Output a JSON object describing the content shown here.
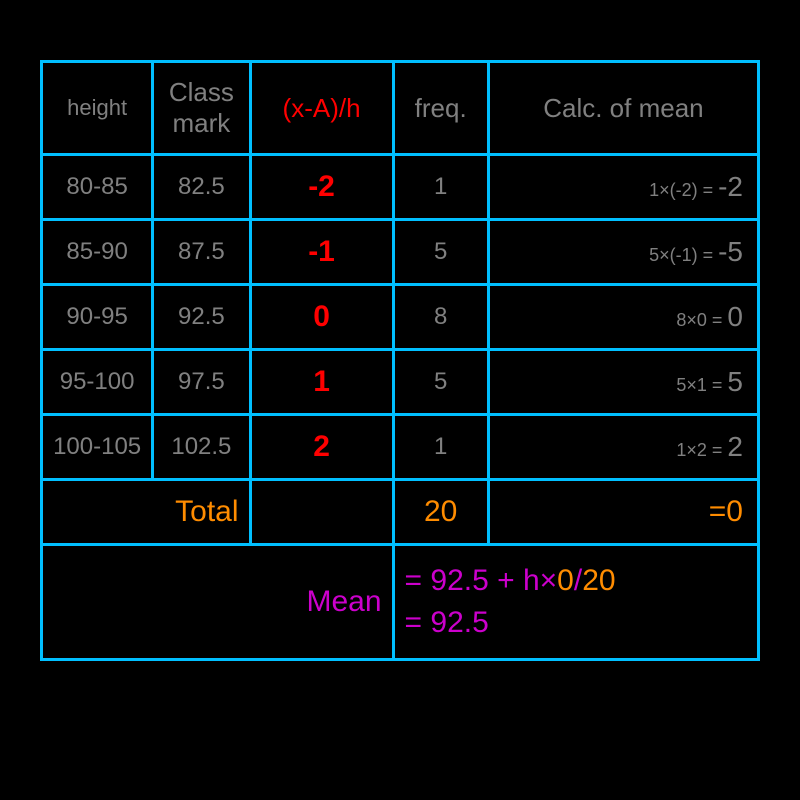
{
  "headers": {
    "height": "height",
    "classmark": "Class mark",
    "deviation": "(x-A)/h",
    "freq": "freq.",
    "calc": "Calc. of mean"
  },
  "rows": [
    {
      "height": "80-85",
      "classmark": "82.5",
      "dev": "-2",
      "freq": "1",
      "calc_small": "1×(-2) = ",
      "calc_big": "-2"
    },
    {
      "height": "85-90",
      "classmark": "87.5",
      "dev": "-1",
      "freq": "5",
      "calc_small": "5×(-1) = ",
      "calc_big": "-5"
    },
    {
      "height": "90-95",
      "classmark": "92.5",
      "dev": "0",
      "freq": "8",
      "calc_small": "8×0 = ",
      "calc_big": "0"
    },
    {
      "height": "95-100",
      "classmark": "97.5",
      "dev": "1",
      "freq": "5",
      "calc_small": "5×1 = ",
      "calc_big": "5"
    },
    {
      "height": "100-105",
      "classmark": "102.5",
      "dev": "2",
      "freq": "1",
      "calc_small": "1×2 = ",
      "calc_big": "2"
    }
  ],
  "totals": {
    "label": "Total",
    "freq": "20",
    "sum": "=0"
  },
  "mean": {
    "label": "Mean",
    "line1_a": "= 92.5 + h×",
    "line1_b": "0",
    "line1_c": "/",
    "line1_d": "20",
    "line2": "= 92.5"
  },
  "colors": {
    "background": "#000000",
    "border": "#00bfff",
    "gray": "#808080",
    "red": "#ff0000",
    "orange": "#ff8c00",
    "magenta": "#cc00cc"
  }
}
